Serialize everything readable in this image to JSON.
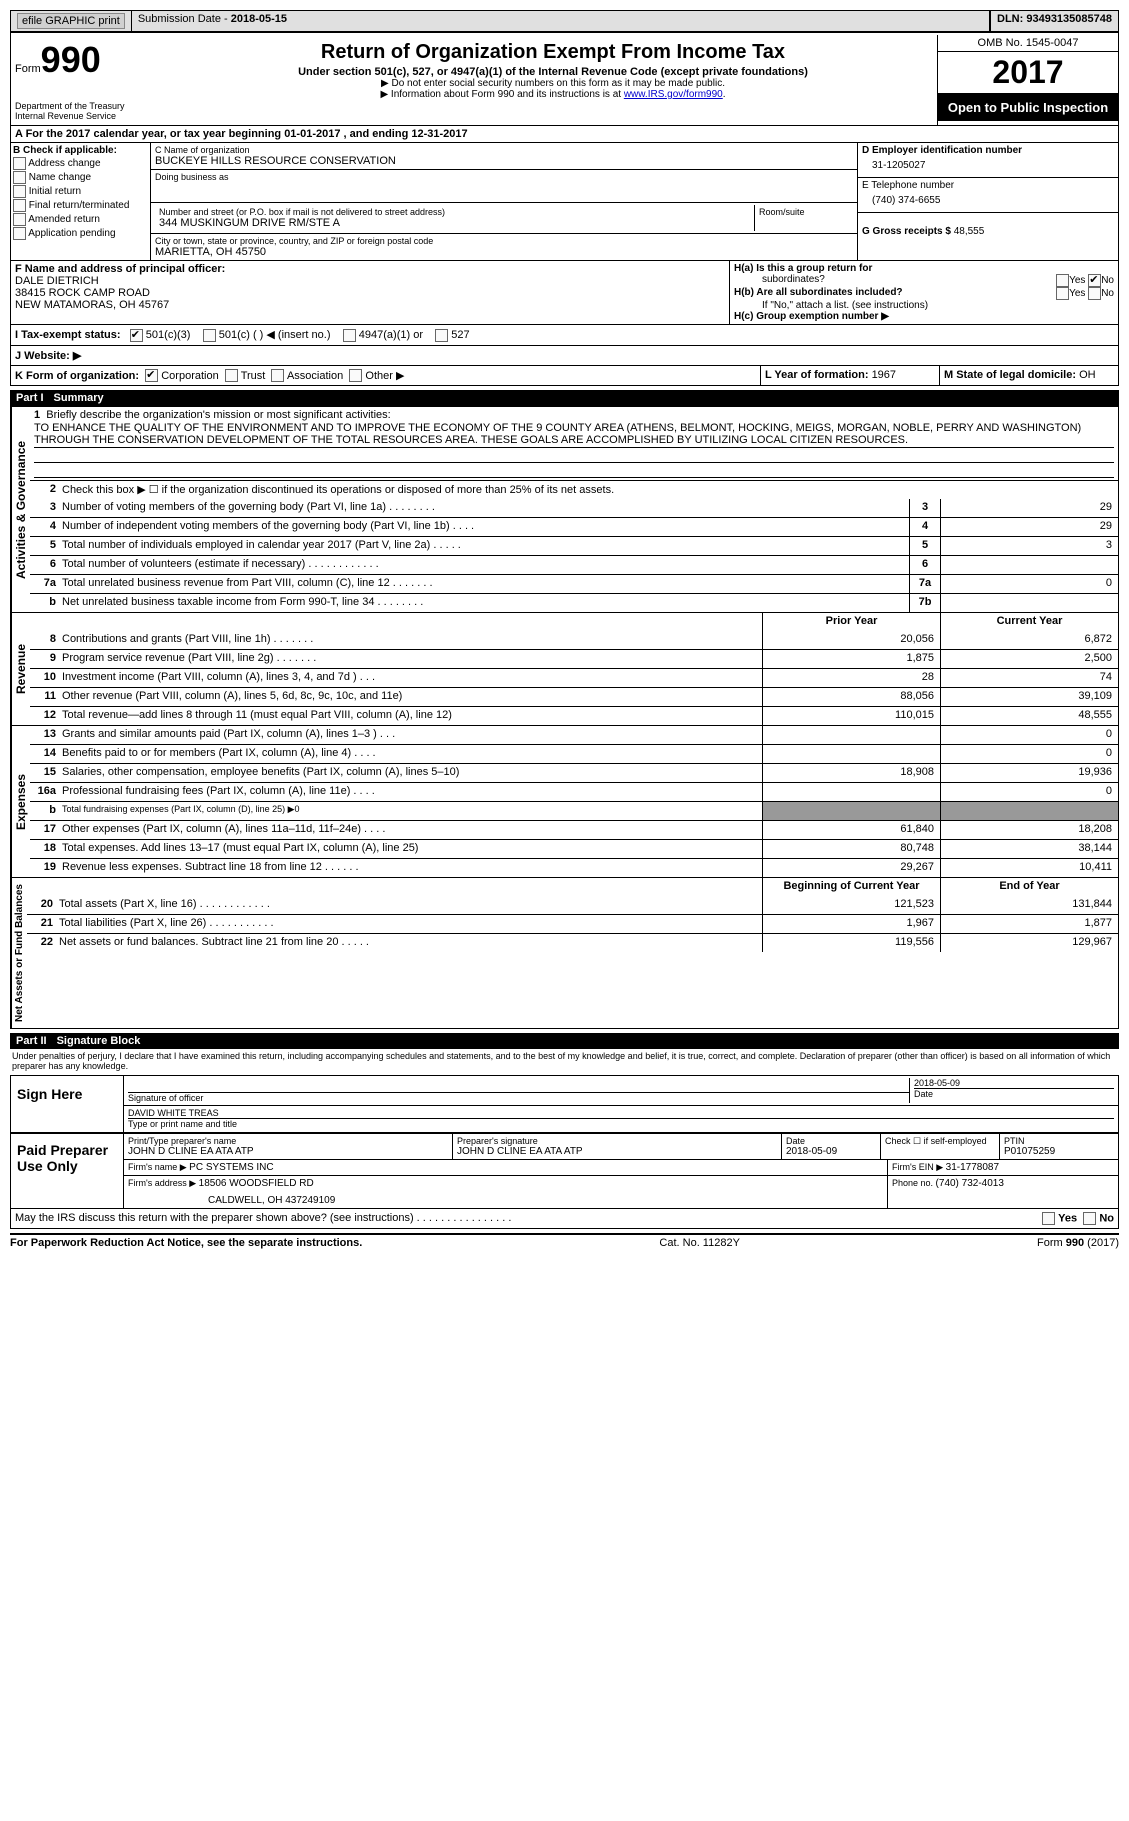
{
  "topbar": {
    "efile": "efile GRAPHIC print",
    "submission_label": "Submission Date - ",
    "submission_date": "2018-05-15",
    "dln_label": "DLN: ",
    "dln": "93493135085748"
  },
  "header": {
    "form_label": "Form",
    "form_num": "990",
    "dept": "Department of the Treasury",
    "irs": "Internal Revenue Service",
    "title": "Return of Organization Exempt From Income Tax",
    "subtitle": "Under section 501(c), 527, or 4947(a)(1) of the Internal Revenue Code (except private foundations)",
    "note1": "▶ Do not enter social security numbers on this form as it may be made public.",
    "note2_pre": "▶ Information about Form 990 and its instructions is at ",
    "note2_link": "www.IRS.gov/form990",
    "omb": "OMB No. 1545-0047",
    "year": "2017",
    "open": "Open to Public Inspection"
  },
  "row_a": "A  For the 2017 calendar year, or tax year beginning 01-01-2017    , and ending 12-31-2017",
  "box_b": {
    "label": "B Check if applicable:",
    "items": [
      "Address change",
      "Name change",
      "Initial return",
      "Final return/terminated",
      "Amended return",
      "Application pending"
    ]
  },
  "box_c": {
    "name_label": "C Name of organization",
    "name": "BUCKEYE HILLS RESOURCE CONSERVATION",
    "dba_label": "Doing business as",
    "dba": "",
    "addr_label": "Number and street (or P.O. box if mail is not delivered to street address)",
    "addr": "344 MUSKINGUM DRIVE RM/STE A",
    "room_label": "Room/suite",
    "city_label": "City or town, state or province, country, and ZIP or foreign postal code",
    "city": "MARIETTA, OH  45750"
  },
  "box_d": {
    "ein_label": "D Employer identification number",
    "ein": "31-1205027",
    "phone_label": "E Telephone number",
    "phone": "(740) 374-6655",
    "gross_label": "G Gross receipts $ ",
    "gross": "48,555"
  },
  "box_f": {
    "label": "F  Name and address of principal officer:",
    "name": "DALE DIETRICH",
    "addr1": "38415 ROCK CAMP ROAD",
    "addr2": "NEW MATAMORAS, OH  45767"
  },
  "box_h": {
    "ha": "H(a) Is this a group return for",
    "ha2": "subordinates?",
    "hb": "H(b) Are all subordinates included?",
    "hb_note": "If \"No,\" attach a list. (see instructions)",
    "hc": "H(c) Group exemption number ▶",
    "yes": "Yes",
    "no": "No"
  },
  "row_i": {
    "label": "I  Tax-exempt status:",
    "opts": [
      "501(c)(3)",
      "501(c) (   ) ◀ (insert no.)",
      "4947(a)(1) or",
      "527"
    ]
  },
  "row_j": "J  Website: ▶",
  "row_k": {
    "left": "K Form of organization:",
    "opts": [
      "Corporation",
      "Trust",
      "Association",
      "Other ▶"
    ],
    "l_label": "L Year of formation: ",
    "l_val": "1967",
    "m_label": "M State of legal domicile: ",
    "m_val": "OH"
  },
  "part1": {
    "num": "Part I",
    "title": "Summary"
  },
  "sections": {
    "activities": {
      "side": "Activities & Governance",
      "mission": {
        "num": "1",
        "label": "Briefly describe the organization's mission or most significant activities:",
        "text": "TO ENHANCE THE QUALITY OF THE ENVIRONMENT AND TO IMPROVE THE ECONOMY OF THE 9 COUNTY AREA (ATHENS, BELMONT, HOCKING, MEIGS, MORGAN, NOBLE, PERRY AND WASHINGTON) THROUGH THE CONSERVATION DEVELOPMENT OF THE TOTAL RESOURCES AREA. THESE GOALS ARE ACCOMPLISHED BY UTILIZING LOCAL CITIZEN RESOURCES."
      },
      "line2": "Check this box ▶ ☐  if the organization discontinued its operations or disposed of more than 25% of its net assets.",
      "lines": [
        {
          "n": "3",
          "d": "Number of voting members of the governing body (Part VI, line 1a)   .   .   .   .   .   .   .   .",
          "box": "3",
          "v": "29"
        },
        {
          "n": "4",
          "d": "Number of independent voting members of the governing body (Part VI, line 1b)   .   .   .   .",
          "box": "4",
          "v": "29"
        },
        {
          "n": "5",
          "d": "Total number of individuals employed in calendar year 2017 (Part V, line 2a)   .   .   .   .   .",
          "box": "5",
          "v": "3"
        },
        {
          "n": "6",
          "d": "Total number of volunteers (estimate if necessary)   .   .   .   .   .   .   .   .   .   .   .   .",
          "box": "6",
          "v": ""
        },
        {
          "n": "7a",
          "d": "Total unrelated business revenue from Part VIII, column (C), line 12   .   .   .   .   .   .   .",
          "box": "7a",
          "v": "0"
        },
        {
          "n": "b",
          "d": "Net unrelated business taxable income from Form 990-T, line 34   .   .   .   .   .   .   .   .",
          "box": "7b",
          "v": ""
        }
      ]
    },
    "revenue": {
      "side": "Revenue",
      "header": {
        "prior": "Prior Year",
        "curr": "Current Year"
      },
      "lines": [
        {
          "n": "8",
          "d": "Contributions and grants (Part VIII, line 1h)   .   .   .   .   .   .   .",
          "p": "20,056",
          "c": "6,872"
        },
        {
          "n": "9",
          "d": "Program service revenue (Part VIII, line 2g)   .   .   .   .   .   .   .",
          "p": "1,875",
          "c": "2,500"
        },
        {
          "n": "10",
          "d": "Investment income (Part VIII, column (A), lines 3, 4, and 7d )   .   .   .",
          "p": "28",
          "c": "74"
        },
        {
          "n": "11",
          "d": "Other revenue (Part VIII, column (A), lines 5, 6d, 8c, 9c, 10c, and 11e)",
          "p": "88,056",
          "c": "39,109"
        },
        {
          "n": "12",
          "d": "Total revenue—add lines 8 through 11 (must equal Part VIII, column (A), line 12)",
          "p": "110,015",
          "c": "48,555"
        }
      ]
    },
    "expenses": {
      "side": "Expenses",
      "lines": [
        {
          "n": "13",
          "d": "Grants and similar amounts paid (Part IX, column (A), lines 1–3 )  .   .   .",
          "p": "",
          "c": "0"
        },
        {
          "n": "14",
          "d": "Benefits paid to or for members (Part IX, column (A), line 4)   .   .   .   .",
          "p": "",
          "c": "0"
        },
        {
          "n": "15",
          "d": "Salaries, other compensation, employee benefits (Part IX, column (A), lines 5–10)",
          "p": "18,908",
          "c": "19,936"
        },
        {
          "n": "16a",
          "d": "Professional fundraising fees (Part IX, column (A), line 11e)   .   .   .   .",
          "p": "",
          "c": "0"
        },
        {
          "n": "b",
          "d": "Total fundraising expenses (Part IX, column (D), line 25) ▶0",
          "p": "shaded",
          "c": "shaded"
        },
        {
          "n": "17",
          "d": "Other expenses (Part IX, column (A), lines 11a–11d, 11f–24e)  .   .   .   .",
          "p": "61,840",
          "c": "18,208"
        },
        {
          "n": "18",
          "d": "Total expenses. Add lines 13–17 (must equal Part IX, column (A), line 25)",
          "p": "80,748",
          "c": "38,144"
        },
        {
          "n": "19",
          "d": "Revenue less expenses. Subtract line 18 from line 12   .   .   .   .   .   .",
          "p": "29,267",
          "c": "10,411"
        }
      ]
    },
    "net": {
      "side": "Net Assets or Fund Balances",
      "header": {
        "prior": "Beginning of Current Year",
        "curr": "End of Year"
      },
      "lines": [
        {
          "n": "20",
          "d": "Total assets (Part X, line 16)   .   .   .   .   .   .   .   .   .   .   .   .",
          "p": "121,523",
          "c": "131,844"
        },
        {
          "n": "21",
          "d": "Total liabilities (Part X, line 26)  .   .   .   .   .   .   .   .   .   .   .",
          "p": "1,967",
          "c": "1,877"
        },
        {
          "n": "22",
          "d": "Net assets or fund balances. Subtract line 21 from line 20  .   .   .   .   .",
          "p": "119,556",
          "c": "129,967"
        }
      ]
    }
  },
  "part2": {
    "num": "Part II",
    "title": "Signature Block"
  },
  "sig": {
    "declaration": "Under penalties of perjury, I declare that I have examined this return, including accompanying schedules and statements, and to the best of my knowledge and belief, it is true, correct, and complete. Declaration of preparer (other than officer) is based on all information of which preparer has any knowledge.",
    "sign_here": "Sign Here",
    "sig_officer_label": "Signature of officer",
    "date_label": "Date",
    "sig_date": "2018-05-09",
    "name_title": "DAVID WHITE TREAS",
    "name_title_label": "Type or print name and title"
  },
  "prep": {
    "label": "Paid Preparer Use Only",
    "row1": {
      "name_label": "Print/Type preparer's name",
      "name": "JOHN D CLINE EA ATA ATP",
      "sig_label": "Preparer's signature",
      "sig": "JOHN D CLINE EA ATA ATP",
      "date_label": "Date",
      "date": "2018-05-09",
      "check_label": "Check ☐ if self-employed",
      "ptin_label": "PTIN",
      "ptin": "P01075259"
    },
    "row2": {
      "firm_name_label": "Firm's name    ▶ ",
      "firm_name": "PC SYSTEMS INC",
      "ein_label": "Firm's EIN ▶ ",
      "ein": "31-1778087"
    },
    "row3": {
      "addr_label": "Firm's address ▶ ",
      "addr1": "18506 WOODSFIELD RD",
      "addr2": "CALDWELL, OH  437249109",
      "phone_label": "Phone no. ",
      "phone": "(740) 732-4013"
    }
  },
  "discuss": "May the IRS discuss this return with the preparer shown above? (see instructions)   .   .   .   .   .   .   .   .   .   .   .   .   .   .   .   .",
  "footer": {
    "left": "For Paperwork Reduction Act Notice, see the separate instructions.",
    "mid": "Cat. No. 11282Y",
    "right": "Form 990 (2017)"
  }
}
